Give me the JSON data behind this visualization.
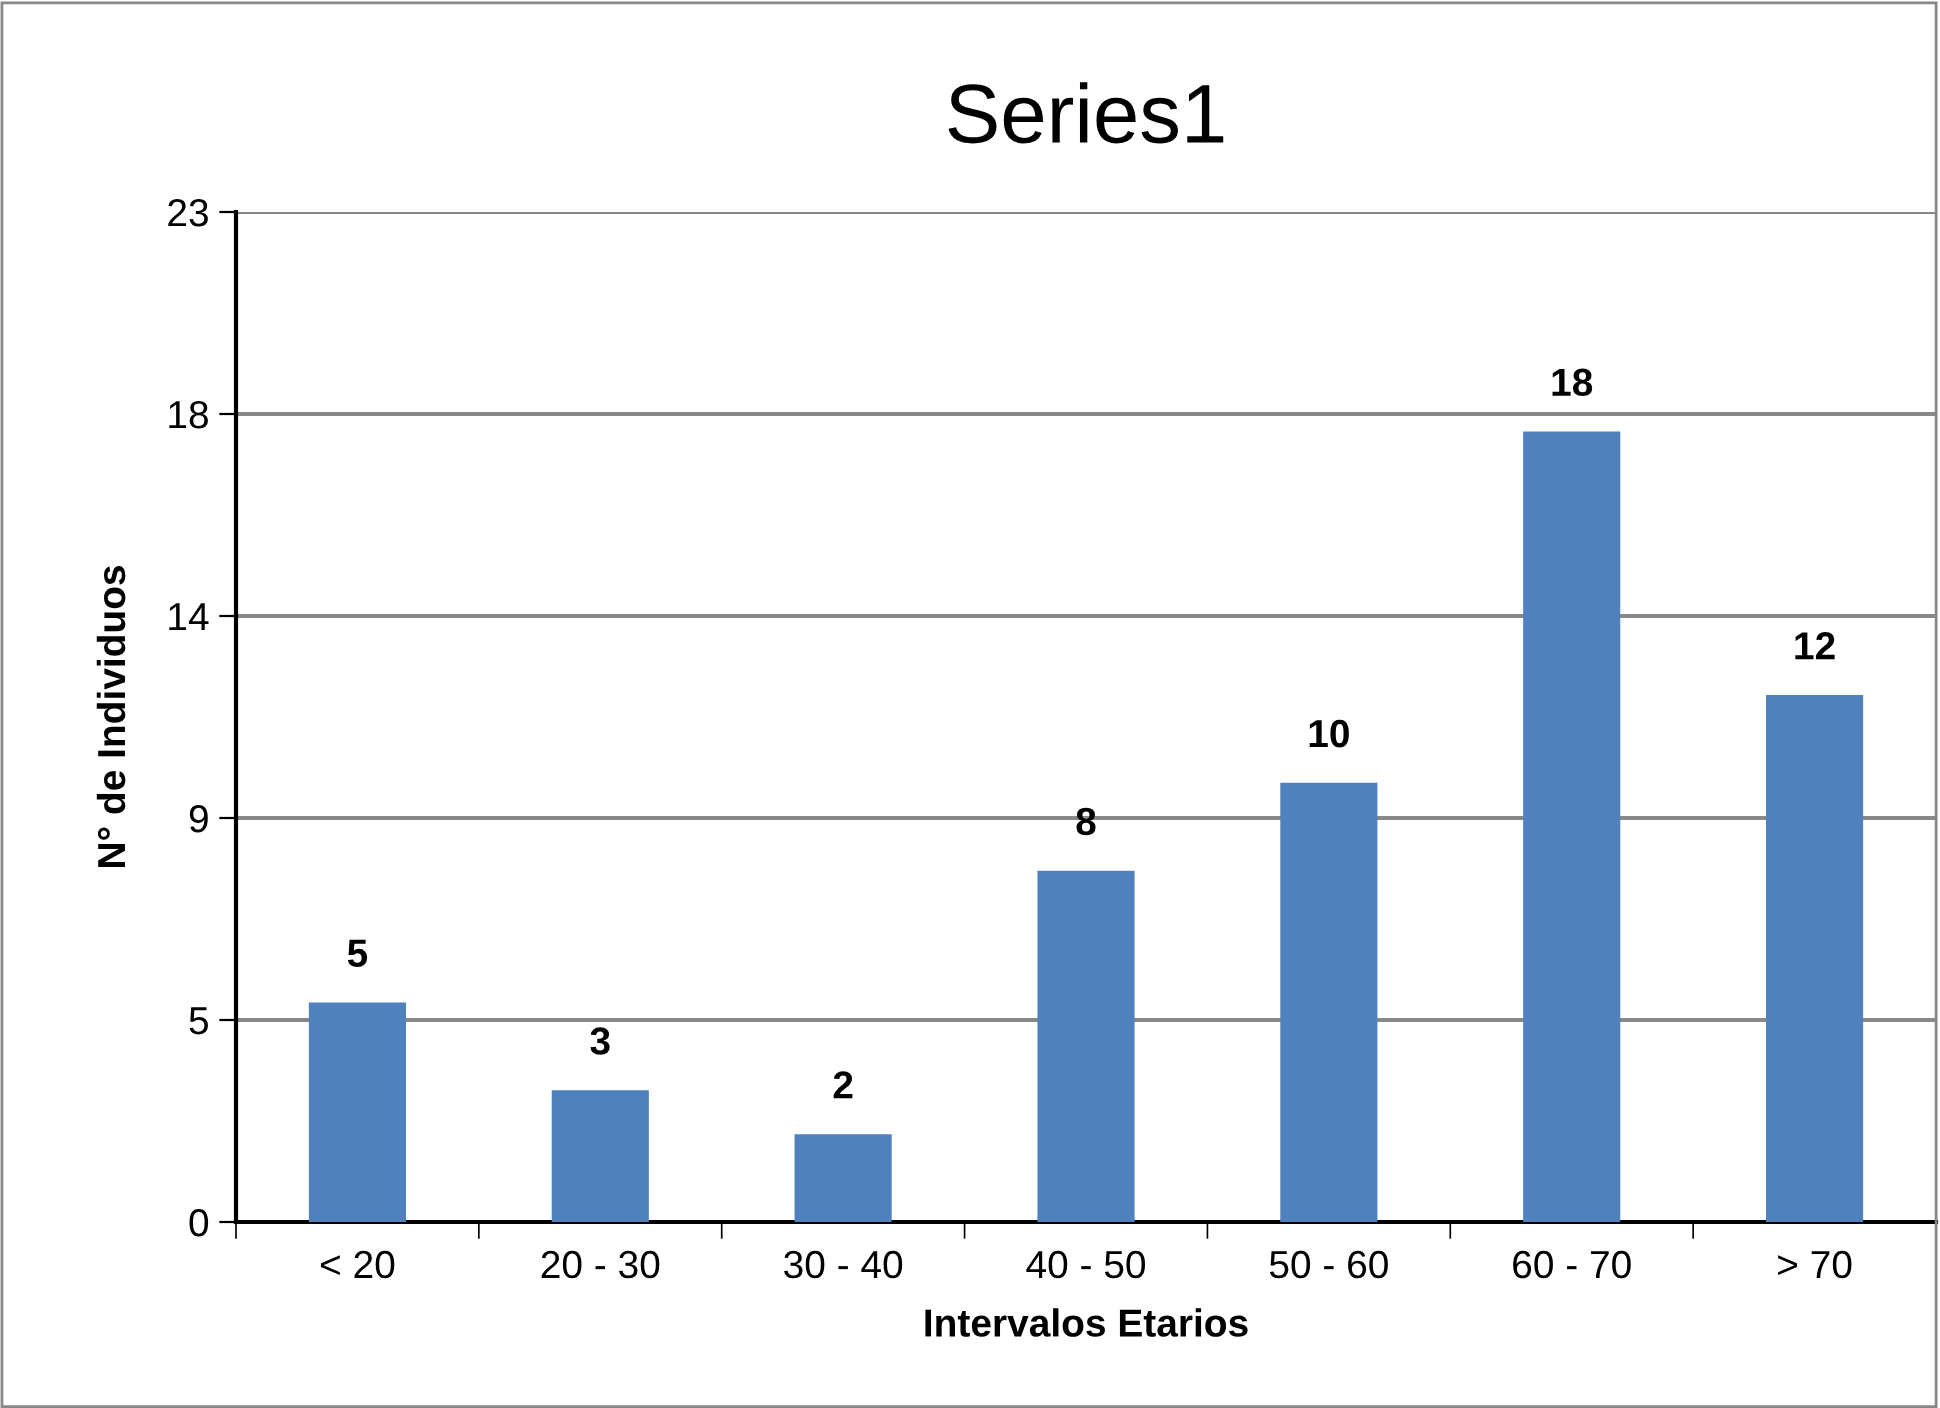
{
  "chart_data": {
    "type": "bar",
    "title": "Series1",
    "xlabel": "Intervalos Etarios",
    "ylabel": "N° de Individuos",
    "categories": [
      "< 20",
      "20 - 30",
      "30 - 40",
      "40 - 50",
      "50 - 60",
      "60 - 70",
      "> 70"
    ],
    "values": [
      5,
      3,
      2,
      8,
      10,
      18,
      12
    ],
    "color": "#4f81bd",
    "ylim": [
      0,
      23
    ],
    "yticks": [
      0,
      {
        "value": 4.6,
        "label": "5"
      },
      {
        "value": 9.2,
        "label": "9"
      },
      {
        "value": 13.8,
        "label": "14"
      },
      {
        "value": 18.4,
        "label": "18"
      },
      23
    ],
    "grid": "y",
    "data_labels": true,
    "legend": false
  }
}
